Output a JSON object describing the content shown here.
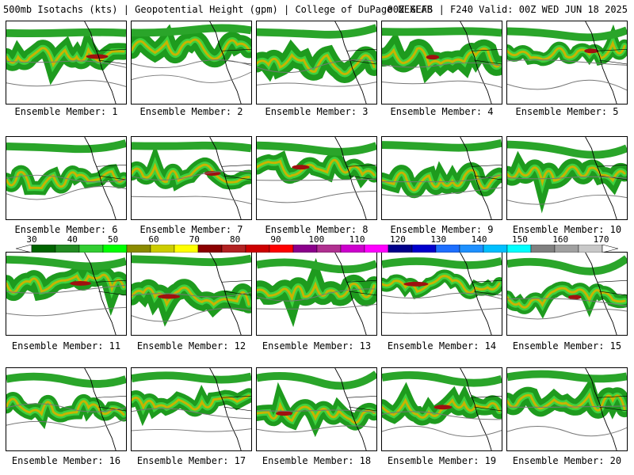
{
  "header": {
    "left": "500mb Isotachs (kts) | Geopotential Height (gpm) | College of DuPage NEXLAB",
    "right": "00Z GEFS | F240 Valid: 00Z WED JUN 18 2025"
  },
  "colorbar": {
    "labels": [
      "30",
      "40",
      "50",
      "60",
      "70",
      "80",
      "90",
      "100",
      "110",
      "120",
      "130",
      "140",
      "150",
      "160",
      "170"
    ],
    "colors": [
      "#006400",
      "#228b22",
      "#32cd32",
      "#00ff00",
      "#8b8b00",
      "#cdcd00",
      "#ffff00",
      "#8b0000",
      "#b22222",
      "#cd0000",
      "#ff0000",
      "#8b008b",
      "#b03090",
      "#cd00cd",
      "#ff00ff",
      "#00008b",
      "#0000cd",
      "#1e6fff",
      "#1e90ff",
      "#00bfff",
      "#00ffff",
      "#808080",
      "#a0a0a0",
      "#c8c8c8"
    ]
  },
  "members": [
    {
      "label": "Ensemble Member: 1"
    },
    {
      "label": "Ensemble Member: 2"
    },
    {
      "label": "Ensemble Member: 3"
    },
    {
      "label": "Ensemble Member: 4"
    },
    {
      "label": "Ensemble Member: 5"
    },
    {
      "label": "Ensemble Member: 6"
    },
    {
      "label": "Ensemble Member: 7"
    },
    {
      "label": "Ensemble Member: 8"
    },
    {
      "label": "Ensemble Member: 9"
    },
    {
      "label": "Ensemble Member: 10"
    },
    {
      "label": "Ensemble Member: 11"
    },
    {
      "label": "Ensemble Member: 12"
    },
    {
      "label": "Ensemble Member: 13"
    },
    {
      "label": "Ensemble Member: 14"
    },
    {
      "label": "Ensemble Member: 15"
    },
    {
      "label": "Ensemble Member: 16"
    },
    {
      "label": "Ensemble Member: 17"
    },
    {
      "label": "Ensemble Member: 18"
    },
    {
      "label": "Ensemble Member: 19"
    },
    {
      "label": "Ensemble Member: 20"
    }
  ]
}
